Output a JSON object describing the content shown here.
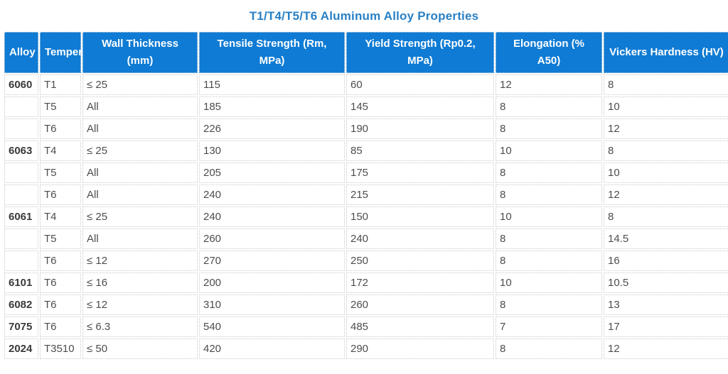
{
  "page": {
    "title": "T1/T4/T5/T6 Aluminum Alloy Properties"
  },
  "table": {
    "columns": [
      {
        "key": "alloy",
        "label": "Alloy"
      },
      {
        "key": "temper",
        "label": "Temper"
      },
      {
        "key": "wall-thickness",
        "label": "Wall Thickness (mm)"
      },
      {
        "key": "tensile-strength",
        "label": "Tensile Strength (Rm, MPa)"
      },
      {
        "key": "yield-strength",
        "label": "Yield Strength (Rp0.2, MPa)"
      },
      {
        "key": "elongation",
        "label": "Elongation (% A50)"
      },
      {
        "key": "vickers-hardness",
        "label": "Vickers Hardness (HV)"
      }
    ],
    "rows": [
      [
        "6060",
        "T1",
        "≤ 25",
        "115",
        "60",
        "12",
        "8"
      ],
      [
        "",
        "T5",
        "All",
        "185",
        "145",
        "8",
        "10"
      ],
      [
        "",
        "T6",
        "All",
        "226",
        "190",
        "8",
        "12"
      ],
      [
        "6063",
        "T4",
        "≤ 25",
        "130",
        "85",
        "10",
        "8"
      ],
      [
        "",
        "T5",
        "All",
        "205",
        "175",
        "8",
        "10"
      ],
      [
        "",
        "T6",
        "All",
        "240",
        "215",
        "8",
        "12"
      ],
      [
        "6061",
        "T4",
        "≤ 25",
        "240",
        "150",
        "10",
        "8"
      ],
      [
        "",
        "T5",
        "All",
        "260",
        "240",
        "8",
        "14.5"
      ],
      [
        "",
        "T6",
        "≤ 12",
        "270",
        "250",
        "8",
        "16"
      ],
      [
        "6101",
        "T6",
        "≤ 16",
        "200",
        "172",
        "10",
        "10.5"
      ],
      [
        "6082",
        "T6",
        "≤ 12",
        "310",
        "260",
        "8",
        "13"
      ],
      [
        "7075",
        "T6",
        "≤ 6.3",
        "540",
        "485",
        "7",
        "17"
      ],
      [
        "2024",
        "T3510",
        "≤ 50",
        "420",
        "290",
        "8",
        "12"
      ]
    ]
  },
  "colors": {
    "header_bg": "#0f7bd4",
    "header_text": "#ffffff",
    "title_text": "#2980c4",
    "cell_text": "#4d4d4d",
    "alloy_text": "#3a3a3a",
    "border": "#c9c9c9"
  }
}
